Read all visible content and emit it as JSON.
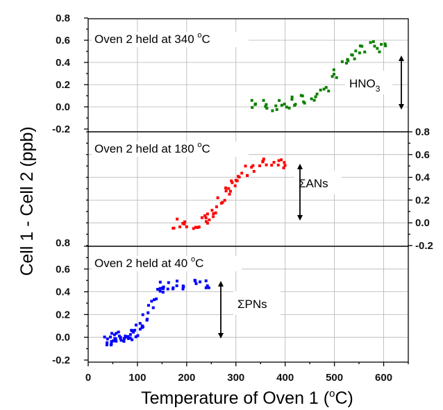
{
  "chart_data": {
    "type": "scatter",
    "xlabel_prefix": "Temperature of Oven 1 (",
    "xlabel_unit": "C)",
    "xlabel_degree": "o",
    "ylabel": "Cell 1 - Cell 2 (ppb)",
    "x_ticks": [
      "0",
      "100",
      "200",
      "300",
      "400",
      "500",
      "600"
    ],
    "xlim": [
      0,
      650
    ],
    "grid": true,
    "panels": [
      {
        "title_prefix": "Oven 2 held at 340 ",
        "title_degree": "o",
        "title_unit": "C",
        "species": "HNO",
        "species_sub": "3",
        "color": "#0b8000",
        "ylim": [
          -0.2,
          0.8
        ],
        "y_tick_side": "left",
        "y_ticks": [
          "-0.2",
          "0.0",
          "0.2",
          "0.4",
          "0.6",
          "0.8"
        ],
        "series": [
          {
            "x": [
              340,
              360,
              380,
              400,
              420,
              440,
              460,
              480,
              500,
              520,
              540,
              560,
              580,
              600
            ],
            "y": [
              0.02,
              0.03,
              0.01,
              0.02,
              0.04,
              0.06,
              0.1,
              0.16,
              0.3,
              0.38,
              0.48,
              0.5,
              0.55,
              0.53
            ]
          }
        ]
      },
      {
        "title_prefix": "Oven 2 held at 180 ",
        "title_degree": "o",
        "title_unit": "C",
        "species": "ΣANs",
        "species_sub": "",
        "color": "#ff0000",
        "ylim": [
          -0.2,
          0.8
        ],
        "y_tick_side": "right",
        "y_ticks": [
          "-0.2",
          "0.0",
          "0.2",
          "0.4",
          "0.6",
          "0.8"
        ],
        "series": [
          {
            "x": [
              180,
              200,
              220,
              240,
              250,
              260,
              270,
              280,
              290,
              300,
              320,
              340,
              360,
              380,
              400
            ],
            "y": [
              0.0,
              0.01,
              0.0,
              0.02,
              0.04,
              0.1,
              0.18,
              0.26,
              0.32,
              0.38,
              0.45,
              0.5,
              0.52,
              0.54,
              0.53
            ]
          }
        ]
      },
      {
        "title_prefix": "Oven 2 held at 40 ",
        "title_degree": "o",
        "title_unit": "C",
        "species": "ΣPNs",
        "species_sub": "",
        "color": "#0000ff",
        "ylim": [
          -0.2,
          0.8
        ],
        "y_tick_side": "left",
        "y_ticks": [
          "-0.2",
          "0.0",
          "0.2",
          "0.4",
          "0.6",
          "0.8"
        ],
        "series": [
          {
            "x": [
              40,
              50,
              60,
              70,
              80,
              90,
              100,
              110,
              120,
              130,
              140,
              150,
              160,
              180,
              200,
              220,
              240
            ],
            "y": [
              -0.02,
              -0.01,
              0.0,
              -0.01,
              0.0,
              0.02,
              0.06,
              0.12,
              0.2,
              0.3,
              0.38,
              0.44,
              0.46,
              0.45,
              0.46,
              0.47,
              0.46
            ]
          }
        ]
      }
    ]
  }
}
